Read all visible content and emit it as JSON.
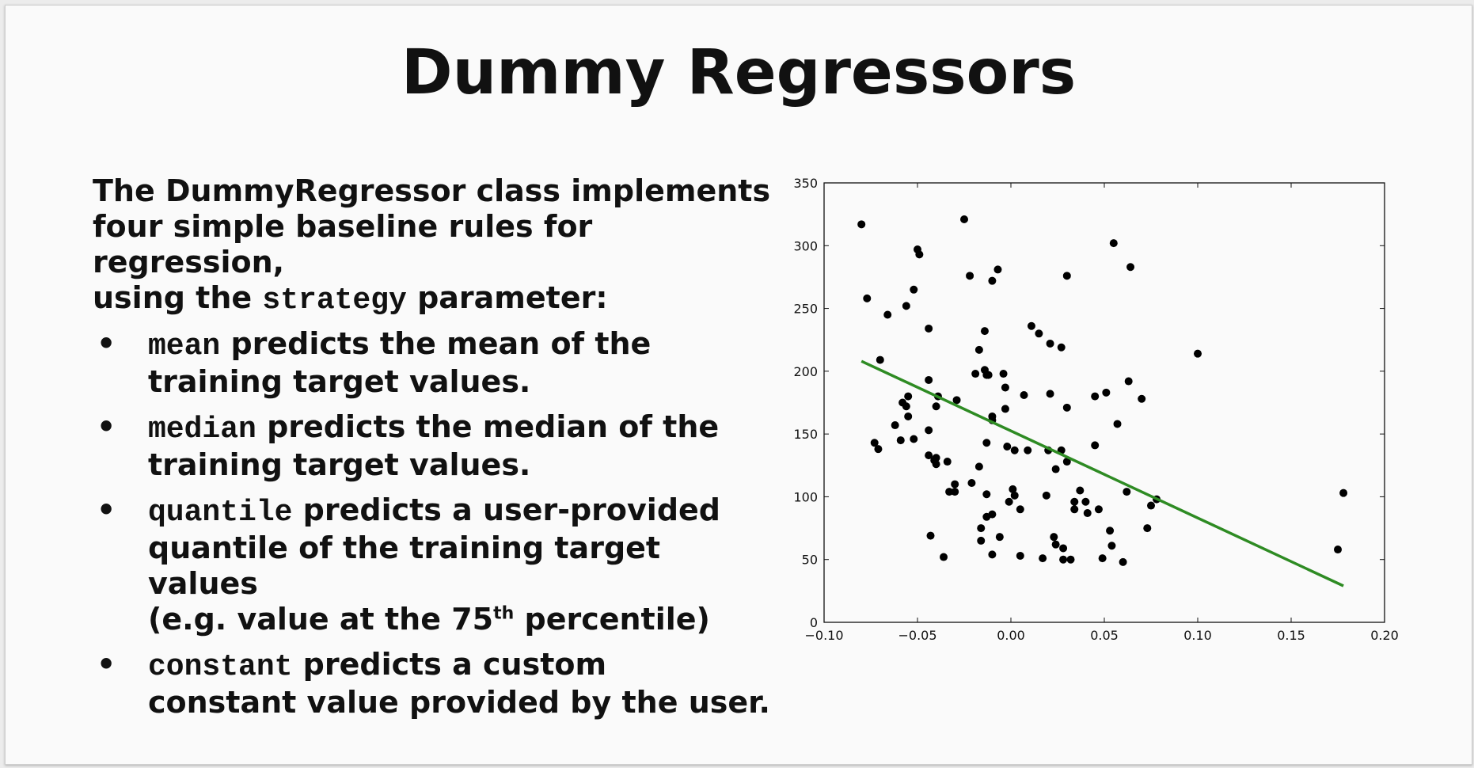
{
  "slide": {
    "title": "Dummy Regressors",
    "intro": {
      "line1": "The DummyRegressor class implements",
      "line2": "four simple baseline rules for regression,",
      "line3_pre": "using the",
      "line3_code": "strategy",
      "line3_post": "parameter:"
    },
    "bullet_symbol": "•",
    "bullets": [
      {
        "code": "mean",
        "text": "predicts the mean of the",
        "cont": "training target values."
      },
      {
        "code": "median",
        "text": "predicts the median of the",
        "cont": "training target values."
      },
      {
        "code": "quantile",
        "text": "predicts a user-provided",
        "cont": "quantile of the training target values",
        "cont2_pre": "(e.g. value at the 75",
        "cont2_sup": "th",
        "cont2_post": " percentile)"
      },
      {
        "code": "constant",
        "text": "predicts a custom",
        "cont": "constant value provided by the user."
      }
    ]
  },
  "chart_data": {
    "type": "scatter",
    "xlim": [
      -0.1,
      0.2
    ],
    "ylim": [
      0,
      350
    ],
    "xticks": [
      "−0.10",
      "−0.05",
      "0.00",
      "0.05",
      "0.10",
      "0.15",
      "0.20"
    ],
    "yticks": [
      "0",
      "50",
      "100",
      "150",
      "200",
      "250",
      "300",
      "350"
    ],
    "xtick_values": [
      -0.1,
      -0.05,
      0.0,
      0.05,
      0.1,
      0.15,
      0.2
    ],
    "ytick_values": [
      0,
      50,
      100,
      150,
      200,
      250,
      300,
      350
    ],
    "point_color": "#000000",
    "line_color": "#2e8b23",
    "points": [
      [
        -0.08,
        317
      ],
      [
        -0.077,
        258
      ],
      [
        -0.073,
        143
      ],
      [
        -0.071,
        138
      ],
      [
        -0.07,
        209
      ],
      [
        -0.066,
        245
      ],
      [
        -0.062,
        157
      ],
      [
        -0.059,
        145
      ],
      [
        -0.058,
        175
      ],
      [
        -0.056,
        252
      ],
      [
        -0.056,
        172
      ],
      [
        -0.055,
        180
      ],
      [
        -0.055,
        164
      ],
      [
        -0.052,
        265
      ],
      [
        -0.052,
        146
      ],
      [
        -0.05,
        297
      ],
      [
        -0.049,
        293
      ],
      [
        -0.044,
        234
      ],
      [
        -0.044,
        193
      ],
      [
        -0.044,
        153
      ],
      [
        -0.044,
        133
      ],
      [
        -0.043,
        69
      ],
      [
        -0.041,
        129
      ],
      [
        -0.04,
        131
      ],
      [
        -0.04,
        126
      ],
      [
        -0.04,
        172
      ],
      [
        -0.039,
        180
      ],
      [
        -0.036,
        52
      ],
      [
        -0.034,
        128
      ],
      [
        -0.033,
        104
      ],
      [
        -0.03,
        110
      ],
      [
        -0.03,
        104
      ],
      [
        -0.029,
        177
      ],
      [
        -0.025,
        321
      ],
      [
        -0.022,
        276
      ],
      [
        -0.021,
        111
      ],
      [
        -0.019,
        198
      ],
      [
        -0.017,
        217
      ],
      [
        -0.017,
        124
      ],
      [
        -0.016,
        75
      ],
      [
        -0.016,
        65
      ],
      [
        -0.014,
        232
      ],
      [
        -0.014,
        201
      ],
      [
        -0.013,
        197
      ],
      [
        -0.013,
        143
      ],
      [
        -0.013,
        102
      ],
      [
        -0.013,
        84
      ],
      [
        -0.012,
        197
      ],
      [
        -0.01,
        272
      ],
      [
        -0.01,
        164
      ],
      [
        -0.01,
        161
      ],
      [
        -0.01,
        86
      ],
      [
        -0.01,
        54
      ],
      [
        -0.007,
        281
      ],
      [
        -0.006,
        68
      ],
      [
        -0.004,
        198
      ],
      [
        -0.003,
        187
      ],
      [
        -0.003,
        170
      ],
      [
        -0.002,
        140
      ],
      [
        -0.001,
        96
      ],
      [
        0.001,
        106
      ],
      [
        0.002,
        137
      ],
      [
        0.002,
        101
      ],
      [
        0.005,
        53
      ],
      [
        0.005,
        90
      ],
      [
        0.007,
        181
      ],
      [
        0.009,
        137
      ],
      [
        0.011,
        236
      ],
      [
        0.015,
        230
      ],
      [
        0.017,
        51
      ],
      [
        0.019,
        101
      ],
      [
        0.02,
        137
      ],
      [
        0.021,
        182
      ],
      [
        0.021,
        222
      ],
      [
        0.023,
        68
      ],
      [
        0.024,
        122
      ],
      [
        0.024,
        62
      ],
      [
        0.027,
        219
      ],
      [
        0.027,
        137
      ],
      [
        0.028,
        59
      ],
      [
        0.028,
        50
      ],
      [
        0.03,
        276
      ],
      [
        0.03,
        171
      ],
      [
        0.03,
        128
      ],
      [
        0.032,
        50
      ],
      [
        0.034,
        96
      ],
      [
        0.034,
        90
      ],
      [
        0.037,
        105
      ],
      [
        0.04,
        96
      ],
      [
        0.041,
        87
      ],
      [
        0.045,
        141
      ],
      [
        0.045,
        180
      ],
      [
        0.047,
        90
      ],
      [
        0.049,
        51
      ],
      [
        0.051,
        183
      ],
      [
        0.053,
        73
      ],
      [
        0.054,
        61
      ],
      [
        0.055,
        302
      ],
      [
        0.057,
        158
      ],
      [
        0.06,
        48
      ],
      [
        0.062,
        104
      ],
      [
        0.063,
        192
      ],
      [
        0.064,
        283
      ],
      [
        0.07,
        178
      ],
      [
        0.073,
        75
      ],
      [
        0.075,
        93
      ],
      [
        0.078,
        98
      ],
      [
        0.1,
        214
      ],
      [
        0.175,
        58
      ],
      [
        0.178,
        103
      ]
    ],
    "line": {
      "x": [
        -0.08,
        0.178
      ],
      "y": [
        208,
        29
      ]
    }
  }
}
